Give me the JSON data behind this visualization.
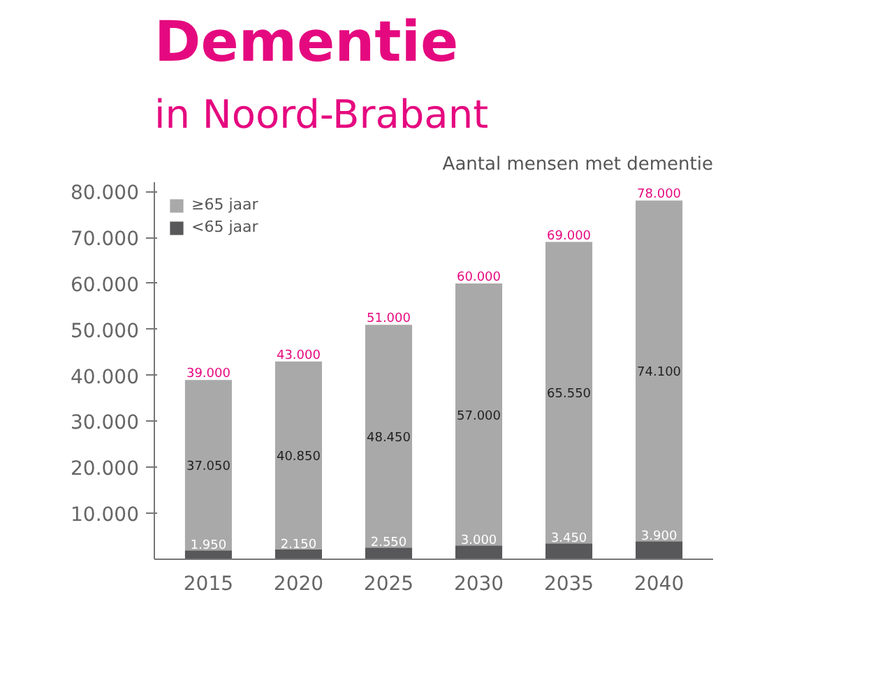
{
  "chart_data": {
    "type": "bar",
    "title": "Dementie",
    "subtitle": "in Noord-Brabant",
    "annotations": [
      "Aantal mensen met dementie"
    ],
    "categories": [
      "2015",
      "2020",
      "2025",
      "2030",
      "2035",
      "2040"
    ],
    "stacked": true,
    "series": [
      {
        "name": "<65 jaar",
        "color": "#58585a",
        "values": [
          1950,
          2150,
          2550,
          3000,
          3450,
          3900
        ],
        "value_labels": [
          "1.950",
          "2.150",
          "2.550",
          "3.000",
          "3.450",
          "3.900"
        ]
      },
      {
        "name": "≥65 jaar",
        "color": "#a9a9a9",
        "values": [
          37050,
          40850,
          48450,
          57000,
          65550,
          74100
        ],
        "value_labels": [
          "37.050",
          "40.850",
          "48.450",
          "57.000",
          "65.550",
          "74.100"
        ]
      }
    ],
    "totals": [
      "39.000",
      "43.000",
      "51.000",
      "60.000",
      "69.000",
      "78.000"
    ],
    "ylim": [
      0,
      82000
    ],
    "yticks": [
      {
        "value": 10000,
        "label": "10.000"
      },
      {
        "value": 20000,
        "label": "20.000"
      },
      {
        "value": 30000,
        "label": "30.000"
      },
      {
        "value": 40000,
        "label": "40.000"
      },
      {
        "value": 50000,
        "label": "50.000"
      },
      {
        "value": 60000,
        "label": "60.000"
      },
      {
        "value": 70000,
        "label": "70.000"
      },
      {
        "value": 80000,
        "label": "80.000"
      }
    ],
    "grid": false,
    "legend": "top left"
  }
}
